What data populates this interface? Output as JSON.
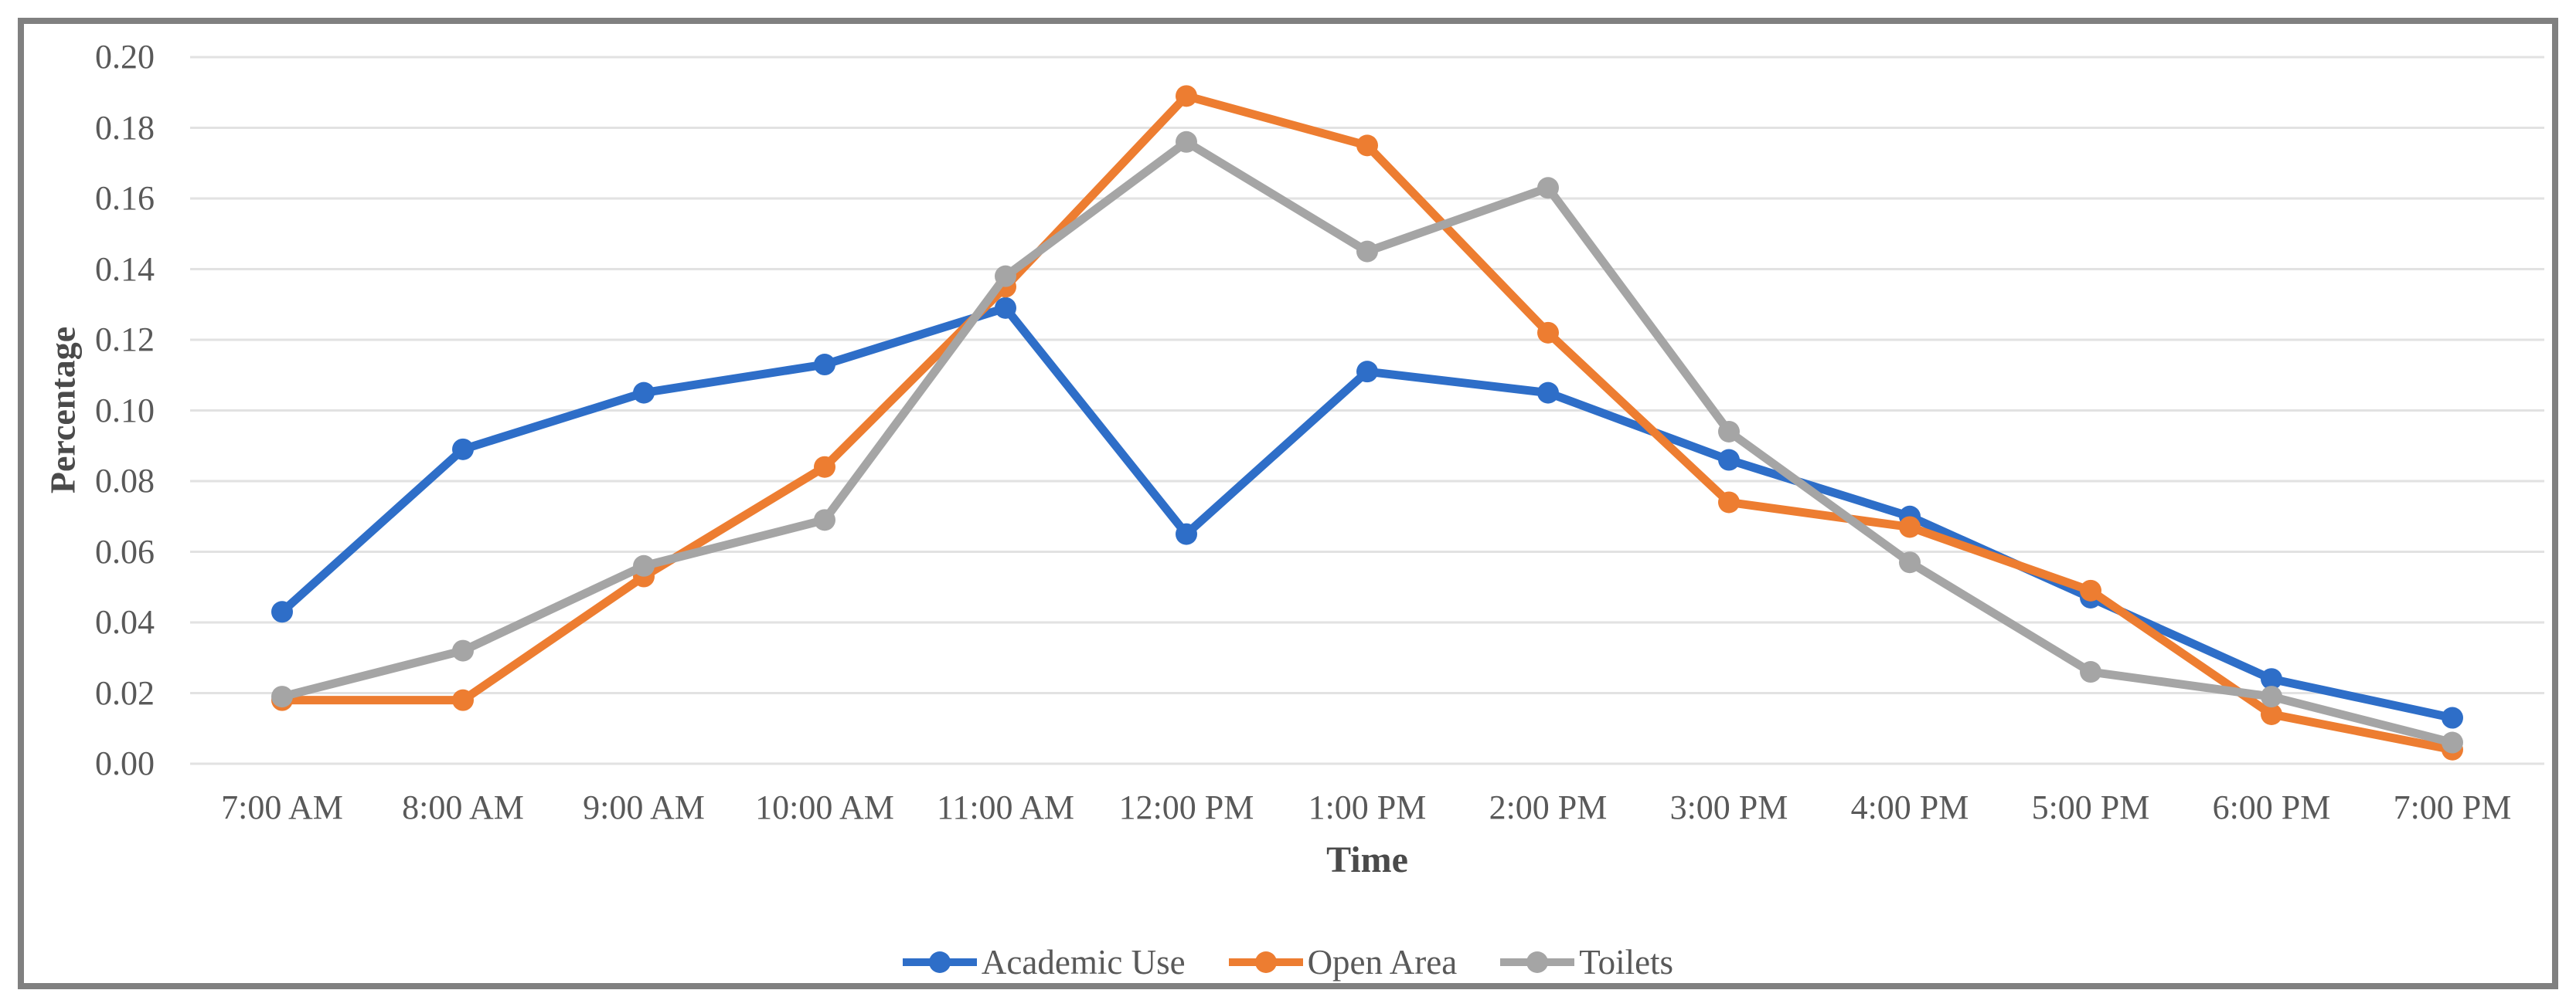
{
  "chart_data": {
    "type": "line",
    "title": "",
    "xlabel": "Time",
    "ylabel": "Percentage",
    "categories": [
      "7:00 AM",
      "8:00 AM",
      "9:00 AM",
      "10:00 AM",
      "11:00 AM",
      "12:00 PM",
      "1:00 PM",
      "2:00 PM",
      "3:00 PM",
      "4:00 PM",
      "5:00 PM",
      "6:00 PM",
      "7:00 PM"
    ],
    "series": [
      {
        "name": "Academic Use",
        "color": "#2E6EC8",
        "values": [
          0.043,
          0.089,
          0.105,
          0.113,
          0.129,
          0.065,
          0.111,
          0.105,
          0.086,
          0.07,
          0.047,
          0.024,
          0.013
        ]
      },
      {
        "name": "Open Area",
        "color": "#ED7D31",
        "values": [
          0.018,
          0.018,
          0.053,
          0.084,
          0.135,
          0.189,
          0.175,
          0.122,
          0.074,
          0.067,
          0.049,
          0.014,
          0.004
        ]
      },
      {
        "name": "Toilets",
        "color": "#A5A5A5",
        "values": [
          0.019,
          0.032,
          0.056,
          0.069,
          0.138,
          0.176,
          0.145,
          0.163,
          0.094,
          0.057,
          0.026,
          0.019,
          0.006
        ]
      }
    ],
    "y_axis": {
      "min": 0.0,
      "max": 0.2,
      "step": 0.02
    },
    "y_ticks": [
      "0.20",
      "0.18",
      "0.16",
      "0.14",
      "0.12",
      "0.10",
      "0.08",
      "0.06",
      "0.04",
      "0.02",
      "0.00"
    ],
    "grid": true,
    "legend_position": "bottom",
    "colors": {
      "gridline": "#E2E2E2",
      "frame_border": "#808080",
      "tick_text": "#595959",
      "axis_title_text": "#4A4A4A"
    }
  }
}
